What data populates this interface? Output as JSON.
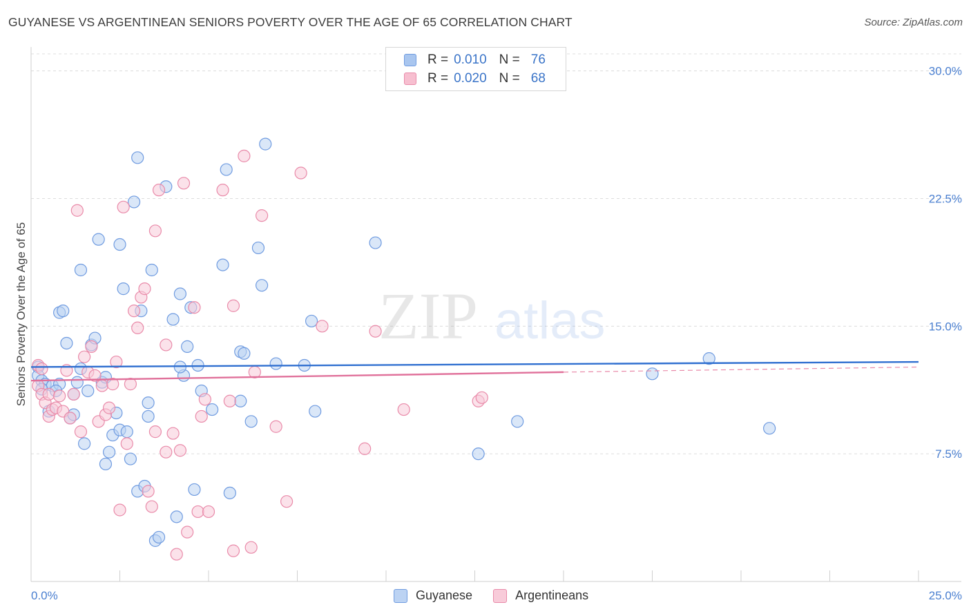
{
  "header": {
    "title": "GUYANESE VS ARGENTINEAN SENIORS POVERTY OVER THE AGE OF 65 CORRELATION CHART",
    "source": "Source: ZipAtlas.com"
  },
  "watermark": {
    "part1": "ZIP",
    "part2": "atlas"
  },
  "legend_stats": [
    {
      "r_label": "R =",
      "r_value": "0.010",
      "n_label": "N =",
      "n_value": "76",
      "color": "#a9c6ef",
      "border": "#6f9be0"
    },
    {
      "r_label": "R =",
      "r_value": "0.020",
      "n_label": "N =",
      "n_value": "68",
      "color": "#f7bfd0",
      "border": "#e98aa9"
    }
  ],
  "bottom_legend": [
    {
      "label": "Guyanese",
      "color": "#bcd3f3",
      "border": "#6f9be0"
    },
    {
      "label": "Argentineans",
      "color": "#f8cbd9",
      "border": "#e98aa9"
    }
  ],
  "chart_data": {
    "type": "scatter",
    "title": "GUYANESE VS ARGENTINEAN SENIORS POVERTY OVER THE AGE OF 65 CORRELATION CHART",
    "ylabel": "Seniors Poverty Over the Age of 65",
    "xlabel": "",
    "xlim": [
      0,
      25
    ],
    "ylim": [
      0,
      31
    ],
    "x_tick_labels": [
      "0.0%",
      "25.0%"
    ],
    "y_ticks": [
      7.5,
      15.0,
      22.5,
      30.0
    ],
    "y_tick_labels": [
      "7.5%",
      "15.0%",
      "22.5%",
      "30.0%"
    ],
    "grid": true,
    "series": [
      {
        "name": "Guyanese",
        "color": "#6f9be0",
        "fill": "#bcd3f3",
        "trend": {
          "x": [
            0,
            25
          ],
          "y": [
            12.6,
            12.9
          ]
        },
        "points": [
          [
            0.2,
            12.6
          ],
          [
            0.2,
            12.1
          ],
          [
            0.3,
            11.8
          ],
          [
            0.4,
            11.6
          ],
          [
            0.5,
            10.0
          ],
          [
            0.6,
            11.5
          ],
          [
            0.8,
            11.6
          ],
          [
            0.8,
            15.8
          ],
          [
            0.9,
            15.9
          ],
          [
            1.0,
            14.0
          ],
          [
            1.1,
            9.6
          ],
          [
            1.2,
            9.8
          ],
          [
            1.3,
            11.7
          ],
          [
            1.4,
            12.5
          ],
          [
            1.5,
            8.1
          ],
          [
            1.6,
            11.2
          ],
          [
            1.7,
            13.9
          ],
          [
            1.8,
            14.3
          ],
          [
            1.4,
            18.3
          ],
          [
            1.9,
            20.1
          ],
          [
            2.0,
            11.7
          ],
          [
            2.1,
            6.9
          ],
          [
            2.1,
            12.0
          ],
          [
            2.2,
            7.6
          ],
          [
            2.3,
            8.6
          ],
          [
            2.4,
            9.9
          ],
          [
            2.5,
            8.9
          ],
          [
            2.5,
            19.8
          ],
          [
            2.6,
            17.2
          ],
          [
            2.7,
            8.8
          ],
          [
            2.8,
            7.2
          ],
          [
            2.9,
            22.3
          ],
          [
            3.0,
            24.9
          ],
          [
            3.0,
            5.3
          ],
          [
            3.1,
            15.9
          ],
          [
            3.2,
            5.6
          ],
          [
            3.3,
            10.5
          ],
          [
            3.3,
            9.7
          ],
          [
            3.4,
            18.3
          ],
          [
            3.5,
            2.4
          ],
          [
            3.6,
            2.6
          ],
          [
            3.8,
            23.2
          ],
          [
            4.0,
            15.4
          ],
          [
            4.1,
            3.8
          ],
          [
            4.2,
            16.9
          ],
          [
            4.3,
            12.1
          ],
          [
            4.4,
            13.8
          ],
          [
            4.5,
            16.1
          ],
          [
            4.6,
            5.4
          ],
          [
            4.7,
            12.7
          ],
          [
            4.8,
            11.2
          ],
          [
            5.1,
            10.1
          ],
          [
            5.4,
            18.6
          ],
          [
            5.5,
            24.2
          ],
          [
            5.6,
            5.2
          ],
          [
            5.9,
            10.6
          ],
          [
            5.9,
            13.5
          ],
          [
            6.0,
            13.4
          ],
          [
            6.2,
            9.4
          ],
          [
            6.4,
            19.6
          ],
          [
            6.5,
            17.4
          ],
          [
            6.6,
            25.7
          ],
          [
            6.9,
            12.8
          ],
          [
            7.7,
            12.7
          ],
          [
            7.9,
            15.3
          ],
          [
            8.0,
            10.0
          ],
          [
            9.7,
            19.9
          ],
          [
            12.6,
            7.5
          ],
          [
            13.7,
            9.4
          ],
          [
            17.5,
            12.2
          ],
          [
            19.1,
            13.1
          ],
          [
            20.8,
            9.0
          ],
          [
            0.3,
            11.3
          ],
          [
            0.7,
            11.2
          ],
          [
            1.2,
            11.0
          ],
          [
            4.2,
            12.6
          ]
        ]
      },
      {
        "name": "Argentineans",
        "color": "#e98aa9",
        "fill": "#f8cbd9",
        "trend": {
          "x": [
            0,
            15
          ],
          "y": [
            11.8,
            12.3
          ],
          "dashed_to": {
            "x": 25,
            "y": 12.6
          }
        },
        "points": [
          [
            0.2,
            12.7
          ],
          [
            0.2,
            11.5
          ],
          [
            0.3,
            11.0
          ],
          [
            0.4,
            10.5
          ],
          [
            0.5,
            11.0
          ],
          [
            0.5,
            9.7
          ],
          [
            0.6,
            10.1
          ],
          [
            0.7,
            10.2
          ],
          [
            0.8,
            10.9
          ],
          [
            0.9,
            10.0
          ],
          [
            1.0,
            12.4
          ],
          [
            1.1,
            9.6
          ],
          [
            1.2,
            11.0
          ],
          [
            1.3,
            21.8
          ],
          [
            1.4,
            8.8
          ],
          [
            1.5,
            13.2
          ],
          [
            1.6,
            12.3
          ],
          [
            1.7,
            13.8
          ],
          [
            1.8,
            12.1
          ],
          [
            1.9,
            9.4
          ],
          [
            2.0,
            11.5
          ],
          [
            2.1,
            9.8
          ],
          [
            2.2,
            10.2
          ],
          [
            2.3,
            11.6
          ],
          [
            2.4,
            12.9
          ],
          [
            2.5,
            4.2
          ],
          [
            2.6,
            22.0
          ],
          [
            2.7,
            8.1
          ],
          [
            2.8,
            11.6
          ],
          [
            2.9,
            15.9
          ],
          [
            3.0,
            14.9
          ],
          [
            3.1,
            16.7
          ],
          [
            3.2,
            17.2
          ],
          [
            3.3,
            5.3
          ],
          [
            3.4,
            4.4
          ],
          [
            3.5,
            8.8
          ],
          [
            3.5,
            20.6
          ],
          [
            3.6,
            23.0
          ],
          [
            3.8,
            13.9
          ],
          [
            3.8,
            7.6
          ],
          [
            4.0,
            8.7
          ],
          [
            4.1,
            1.6
          ],
          [
            4.2,
            7.7
          ],
          [
            4.3,
            23.4
          ],
          [
            4.4,
            2.9
          ],
          [
            4.6,
            16.1
          ],
          [
            4.7,
            4.1
          ],
          [
            4.8,
            9.7
          ],
          [
            4.9,
            10.7
          ],
          [
            5.0,
            4.1
          ],
          [
            5.4,
            23.0
          ],
          [
            5.6,
            10.6
          ],
          [
            5.7,
            16.2
          ],
          [
            5.7,
            1.8
          ],
          [
            6.0,
            25.0
          ],
          [
            6.2,
            2.0
          ],
          [
            6.3,
            12.3
          ],
          [
            6.5,
            21.5
          ],
          [
            6.9,
            9.1
          ],
          [
            7.2,
            4.7
          ],
          [
            7.6,
            24.0
          ],
          [
            8.2,
            15.0
          ],
          [
            9.4,
            7.8
          ],
          [
            9.7,
            14.7
          ],
          [
            10.5,
            10.1
          ],
          [
            12.6,
            10.6
          ],
          [
            12.7,
            10.8
          ],
          [
            0.3,
            12.5
          ]
        ]
      }
    ]
  }
}
